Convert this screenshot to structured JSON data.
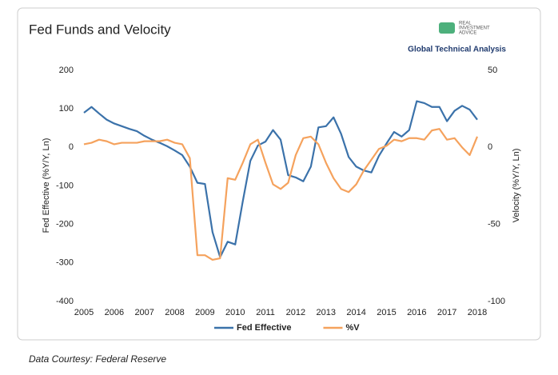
{
  "chart_data": {
    "type": "line",
    "title": "Fed Funds and Velocity",
    "brand": [
      "REAL",
      "INVESTMENT",
      "ADVICE"
    ],
    "subtitle": "Global Technical Analysis",
    "source": "Data Courtesy: Federal Reserve",
    "ylabel": "Fed Effective (%Y/Y, Ln)",
    "y2label": "Velocity (%Y/Y, Ln)",
    "x": [
      2005,
      2005.25,
      2005.5,
      2005.75,
      2006,
      2006.25,
      2006.5,
      2006.75,
      2007,
      2007.25,
      2007.5,
      2007.75,
      2008,
      2008.25,
      2008.5,
      2008.75,
      2009,
      2009.25,
      2009.5,
      2009.75,
      2010,
      2010.25,
      2010.5,
      2010.75,
      2011,
      2011.25,
      2011.5,
      2011.75,
      2012,
      2012.25,
      2012.5,
      2012.75,
      2013,
      2013.25,
      2013.5,
      2013.75,
      2014,
      2014.25,
      2014.5,
      2014.75,
      2015,
      2015.25,
      2015.5,
      2015.75,
      2016,
      2016.25,
      2016.5,
      2016.75,
      2017,
      2017.25,
      2017.5,
      2017.75,
      2018
    ],
    "xlim": [
      2005,
      2018
    ],
    "xticks": [
      2005,
      2006,
      2007,
      2008,
      2009,
      2010,
      2011,
      2012,
      2013,
      2014,
      2015,
      2016,
      2017,
      2018
    ],
    "ylim": [
      -400,
      200
    ],
    "yticks": [
      200,
      100,
      0,
      -100,
      -200,
      -300,
      -400
    ],
    "y2lim": [
      -100,
      50
    ],
    "y2ticks": [
      50,
      0,
      -50,
      -100
    ],
    "series": [
      {
        "name": "Fed Effective",
        "color": "#3b72aa",
        "values": [
          90,
          105,
          88,
          72,
          62,
          55,
          48,
          42,
          30,
          20,
          12,
          3,
          -8,
          -20,
          -50,
          -92,
          -95,
          -220,
          -285,
          -245,
          -252,
          -140,
          -35,
          5,
          15,
          45,
          20,
          -72,
          -78,
          -88,
          -50,
          52,
          55,
          78,
          35,
          -25,
          -50,
          -60,
          -65,
          -22,
          10,
          40,
          28,
          45,
          120,
          115,
          105,
          105,
          68,
          95,
          108,
          98,
          72
        ]
      },
      {
        "name": "%V",
        "color": "#f5a25d",
        "axis": "y2",
        "values": [
          2,
          3,
          5,
          4,
          2,
          3,
          3,
          3,
          4,
          4,
          4,
          5,
          3,
          2,
          -7,
          -70,
          -70,
          -73,
          -72,
          -20,
          -21,
          -10,
          2,
          5,
          -10,
          -24,
          -27,
          -23,
          -5,
          6,
          7,
          2,
          -10,
          -20,
          -27,
          -29,
          -24,
          -15,
          -8,
          -1,
          1,
          5,
          4,
          6,
          6,
          5,
          11,
          12,
          5,
          6,
          0,
          -5,
          7
        ]
      }
    ]
  }
}
